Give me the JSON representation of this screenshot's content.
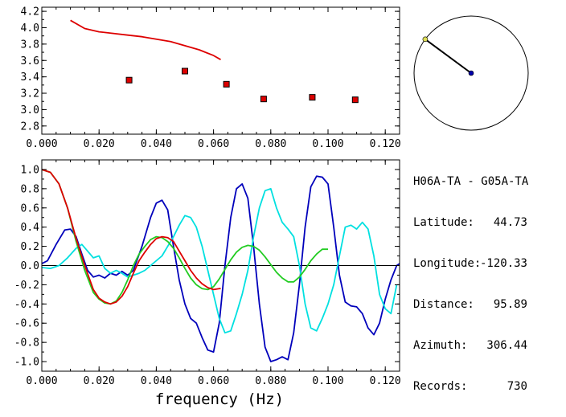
{
  "chart_data": [
    {
      "type": "scatter",
      "xlim": [
        0.0,
        0.125
      ],
      "ylim": [
        2.7,
        4.25
      ],
      "xticks": [
        "0.000",
        "0.020",
        "0.040",
        "0.060",
        "0.080",
        "0.100",
        "0.120"
      ],
      "xtick_values": [
        0.0,
        0.02,
        0.04,
        0.06,
        0.08,
        0.1,
        0.12
      ],
      "yticks": [
        "2.8",
        "3.0",
        "3.2",
        "3.4",
        "3.6",
        "3.8",
        "4.0",
        "4.2"
      ],
      "ytick_values": [
        2.8,
        3.0,
        3.2,
        3.4,
        3.6,
        3.8,
        4.0,
        4.2
      ],
      "series": [
        {
          "kind": "line",
          "color": "#dd0000",
          "x": [
            0.01,
            0.015,
            0.02,
            0.025,
            0.03,
            0.035,
            0.04,
            0.045,
            0.05,
            0.055,
            0.06,
            0.0625
          ],
          "y": [
            4.09,
            3.99,
            3.95,
            3.93,
            3.91,
            3.89,
            3.86,
            3.83,
            3.78,
            3.73,
            3.66,
            3.61
          ]
        },
        {
          "kind": "points",
          "color": "#dd0000",
          "x": [
            0.0305,
            0.05,
            0.0645,
            0.0775,
            0.0945,
            0.1095
          ],
          "y": [
            3.36,
            3.47,
            3.31,
            3.13,
            3.15,
            3.12
          ]
        }
      ]
    },
    {
      "type": "line",
      "xlim": [
        0.0,
        0.125
      ],
      "ylim": [
        -1.1,
        1.1
      ],
      "xticks": [
        "0.000",
        "0.020",
        "0.040",
        "0.060",
        "0.080",
        "0.100",
        "0.120"
      ],
      "xtick_values": [
        0.0,
        0.02,
        0.04,
        0.06,
        0.08,
        0.1,
        0.12
      ],
      "yticks": [
        "1.0",
        "0.8",
        "0.6",
        "0.4",
        "0.2",
        "0.0",
        "-0.2",
        "-0.4",
        "-0.6",
        "-0.8",
        "-1.0"
      ],
      "ytick_values": [
        1.0,
        0.8,
        0.6,
        0.4,
        0.2,
        0.0,
        -0.2,
        -0.4,
        -0.6,
        -0.8,
        -1.0
      ],
      "xlabel": "frequency (Hz)",
      "series": [
        {
          "color": "#0000bb",
          "x": [
            0.0,
            0.002,
            0.005,
            0.008,
            0.01,
            0.012,
            0.014,
            0.016,
            0.018,
            0.02,
            0.022,
            0.024,
            0.026,
            0.028,
            0.03,
            0.032,
            0.035,
            0.038,
            0.04,
            0.042,
            0.044,
            0.046,
            0.048,
            0.05,
            0.052,
            0.054,
            0.056,
            0.058,
            0.06,
            0.062,
            0.064,
            0.066,
            0.068,
            0.07,
            0.072,
            0.074,
            0.076,
            0.078,
            0.08,
            0.082,
            0.084,
            0.086,
            0.088,
            0.09,
            0.092,
            0.094,
            0.096,
            0.098,
            0.1,
            0.102,
            0.104,
            0.106,
            0.108,
            0.11,
            0.112,
            0.114,
            0.116,
            0.118,
            0.12,
            0.122,
            0.124,
            0.125
          ],
          "y": [
            0.02,
            0.05,
            0.22,
            0.37,
            0.38,
            0.3,
            0.12,
            -0.05,
            -0.12,
            -0.1,
            -0.13,
            -0.08,
            -0.1,
            -0.06,
            -0.1,
            -0.05,
            0.2,
            0.5,
            0.65,
            0.68,
            0.58,
            0.2,
            -0.15,
            -0.4,
            -0.55,
            -0.6,
            -0.75,
            -0.88,
            -0.9,
            -0.6,
            0.0,
            0.5,
            0.8,
            0.85,
            0.7,
            0.2,
            -0.4,
            -0.85,
            -1.0,
            -0.98,
            -0.95,
            -0.98,
            -0.7,
            -0.2,
            0.4,
            0.82,
            0.93,
            0.92,
            0.85,
            0.4,
            -0.1,
            -0.38,
            -0.42,
            -0.43,
            -0.5,
            -0.65,
            -0.72,
            -0.6,
            -0.35,
            -0.15,
            0.0,
            0.02
          ]
        },
        {
          "color": "#00e0e0",
          "x": [
            0.0,
            0.003,
            0.006,
            0.009,
            0.012,
            0.014,
            0.016,
            0.018,
            0.02,
            0.022,
            0.024,
            0.026,
            0.028,
            0.03,
            0.032,
            0.034,
            0.036,
            0.038,
            0.04,
            0.042,
            0.044,
            0.046,
            0.048,
            0.05,
            0.052,
            0.054,
            0.056,
            0.058,
            0.06,
            0.062,
            0.064,
            0.066,
            0.068,
            0.07,
            0.072,
            0.074,
            0.076,
            0.078,
            0.08,
            0.082,
            0.084,
            0.086,
            0.088,
            0.09,
            0.092,
            0.094,
            0.096,
            0.098,
            0.1,
            0.102,
            0.104,
            0.106,
            0.108,
            0.11,
            0.112,
            0.114,
            0.116,
            0.118,
            0.12,
            0.122,
            0.124
          ],
          "y": [
            -0.02,
            -0.03,
            0.0,
            0.08,
            0.18,
            0.22,
            0.15,
            0.08,
            0.1,
            -0.03,
            -0.08,
            -0.05,
            -0.08,
            -0.12,
            -0.1,
            -0.08,
            -0.05,
            0.0,
            0.05,
            0.1,
            0.2,
            0.3,
            0.42,
            0.52,
            0.5,
            0.4,
            0.2,
            -0.05,
            -0.3,
            -0.55,
            -0.7,
            -0.68,
            -0.5,
            -0.3,
            -0.05,
            0.3,
            0.6,
            0.78,
            0.8,
            0.6,
            0.45,
            0.38,
            0.3,
            0.0,
            -0.4,
            -0.65,
            -0.68,
            -0.55,
            -0.4,
            -0.2,
            0.1,
            0.4,
            0.42,
            0.38,
            0.45,
            0.38,
            0.1,
            -0.3,
            -0.45,
            -0.5,
            -0.2
          ]
        },
        {
          "color": "#22cc22",
          "x": [
            0.0,
            0.003,
            0.006,
            0.009,
            0.012,
            0.015,
            0.018,
            0.02,
            0.022,
            0.024,
            0.026,
            0.028,
            0.03,
            0.032,
            0.034,
            0.036,
            0.038,
            0.04,
            0.042,
            0.044,
            0.046,
            0.048,
            0.05,
            0.052,
            0.054,
            0.056,
            0.058,
            0.06,
            0.062,
            0.064,
            0.066,
            0.068,
            0.07,
            0.072,
            0.074,
            0.076,
            0.078,
            0.08,
            0.082,
            0.084,
            0.086,
            0.088,
            0.09,
            0.092,
            0.094,
            0.096,
            0.098,
            0.1
          ],
          "y": [
            1.0,
            0.97,
            0.85,
            0.6,
            0.25,
            -0.05,
            -0.28,
            -0.35,
            -0.39,
            -0.4,
            -0.37,
            -0.28,
            -0.15,
            0.0,
            0.12,
            0.2,
            0.27,
            0.3,
            0.29,
            0.25,
            0.18,
            0.08,
            -0.03,
            -0.13,
            -0.2,
            -0.24,
            -0.25,
            -0.22,
            -0.14,
            -0.04,
            0.06,
            0.14,
            0.19,
            0.21,
            0.2,
            0.16,
            0.09,
            0.01,
            -0.07,
            -0.13,
            -0.17,
            -0.17,
            -0.12,
            -0.04,
            0.05,
            0.12,
            0.17,
            0.17
          ]
        },
        {
          "color": "#dd0000",
          "x": [
            0.0,
            0.003,
            0.006,
            0.009,
            0.012,
            0.015,
            0.018,
            0.02,
            0.022,
            0.024,
            0.026,
            0.028,
            0.03,
            0.032,
            0.034,
            0.036,
            0.038,
            0.04,
            0.042,
            0.044,
            0.046,
            0.048,
            0.05,
            0.052,
            0.054,
            0.056,
            0.058,
            0.06,
            0.062,
            0.0625
          ],
          "y": [
            1.0,
            0.97,
            0.85,
            0.6,
            0.28,
            0.0,
            -0.25,
            -0.34,
            -0.38,
            -0.4,
            -0.38,
            -0.32,
            -0.22,
            -0.08,
            0.05,
            0.14,
            0.22,
            0.28,
            0.3,
            0.29,
            0.25,
            0.15,
            0.05,
            -0.05,
            -0.13,
            -0.19,
            -0.23,
            -0.25,
            -0.24,
            -0.24
          ]
        }
      ]
    },
    {
      "type": "azimuth",
      "azimuth_deg": 306.44,
      "needle_color": "#000000",
      "center_color": "#0000aa",
      "tip_color": "#dddd55"
    }
  ],
  "info": {
    "title": "H06A-TA - G05A-TA",
    "rows": [
      {
        "key": "Latitude:",
        "value": "44.73"
      },
      {
        "key": "Longitude:",
        "value": "-120.33"
      },
      {
        "key": "Distance:",
        "value": "95.89"
      },
      {
        "key": "Azimuth:",
        "value": "306.44"
      },
      {
        "key": "Records:",
        "value": "730"
      }
    ]
  }
}
